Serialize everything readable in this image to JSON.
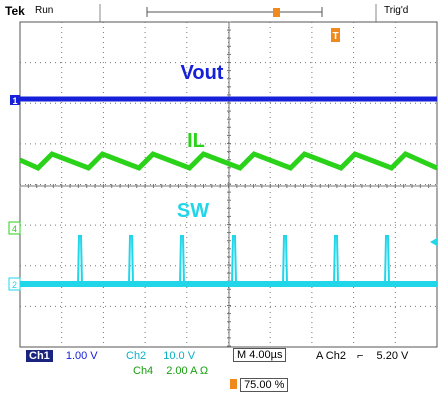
{
  "header": {
    "brand": "Tek",
    "run_state": "Run",
    "trigger_state": "Trig'd",
    "trigger_marker": "T"
  },
  "traces": {
    "vout": {
      "label": "Vout",
      "color": "#1520d8"
    },
    "il": {
      "label": "IL",
      "color": "#2ad21a"
    },
    "sw": {
      "label": "SW",
      "color": "#22d6ea"
    }
  },
  "markers": {
    "ch1": "1",
    "ch4": "4",
    "ch2": "2"
  },
  "readouts": {
    "ch1": {
      "name": "Ch1",
      "value": "1.00 V"
    },
    "ch2": {
      "name": "Ch2",
      "value": "10.0 V"
    },
    "ch4": {
      "name": "Ch4",
      "value": "2.00 A Ω"
    },
    "timebase": "M 4.00µs",
    "trigger_source": "A  Ch2",
    "trigger_level": "5.20 V",
    "trigger_position": "75.00 %"
  }
}
